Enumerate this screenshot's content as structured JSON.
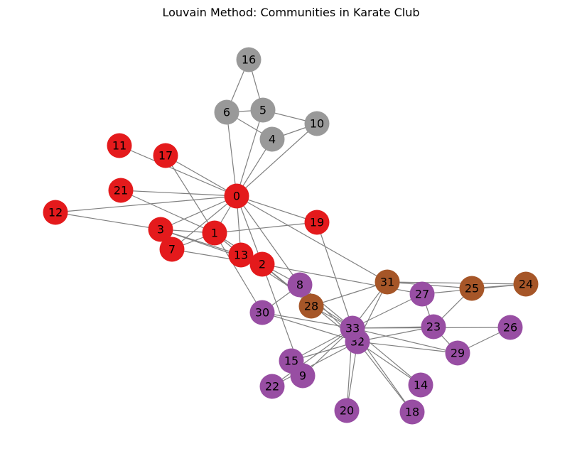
{
  "title": "Louvain Method: Communities in Karate Club",
  "colors": {
    "edge": "#808080",
    "community_red": "#e41a1c",
    "community_gray": "#999999",
    "community_brown": "#a65628",
    "community_purple": "#984ea3"
  },
  "graph": {
    "nodes": [
      {
        "id": "0",
        "community": "red"
      },
      {
        "id": "1",
        "community": "red"
      },
      {
        "id": "2",
        "community": "red"
      },
      {
        "id": "3",
        "community": "red"
      },
      {
        "id": "7",
        "community": "red"
      },
      {
        "id": "11",
        "community": "red"
      },
      {
        "id": "12",
        "community": "red"
      },
      {
        "id": "13",
        "community": "red"
      },
      {
        "id": "17",
        "community": "red"
      },
      {
        "id": "19",
        "community": "red"
      },
      {
        "id": "21",
        "community": "red"
      },
      {
        "id": "4",
        "community": "gray"
      },
      {
        "id": "5",
        "community": "gray"
      },
      {
        "id": "6",
        "community": "gray"
      },
      {
        "id": "10",
        "community": "gray"
      },
      {
        "id": "16",
        "community": "gray"
      },
      {
        "id": "24",
        "community": "brown"
      },
      {
        "id": "25",
        "community": "brown"
      },
      {
        "id": "28",
        "community": "brown"
      },
      {
        "id": "31",
        "community": "brown"
      },
      {
        "id": "8",
        "community": "purple"
      },
      {
        "id": "9",
        "community": "purple"
      },
      {
        "id": "14",
        "community": "purple"
      },
      {
        "id": "15",
        "community": "purple"
      },
      {
        "id": "18",
        "community": "purple"
      },
      {
        "id": "20",
        "community": "purple"
      },
      {
        "id": "22",
        "community": "purple"
      },
      {
        "id": "23",
        "community": "purple"
      },
      {
        "id": "26",
        "community": "purple"
      },
      {
        "id": "27",
        "community": "purple"
      },
      {
        "id": "29",
        "community": "purple"
      },
      {
        "id": "30",
        "community": "purple"
      },
      {
        "id": "32",
        "community": "purple"
      },
      {
        "id": "33",
        "community": "purple"
      }
    ],
    "edges": [
      [
        "0",
        "1"
      ],
      [
        "0",
        "2"
      ],
      [
        "0",
        "3"
      ],
      [
        "0",
        "4"
      ],
      [
        "0",
        "5"
      ],
      [
        "0",
        "6"
      ],
      [
        "0",
        "7"
      ],
      [
        "0",
        "8"
      ],
      [
        "0",
        "10"
      ],
      [
        "0",
        "11"
      ],
      [
        "0",
        "12"
      ],
      [
        "0",
        "13"
      ],
      [
        "0",
        "17"
      ],
      [
        "0",
        "19"
      ],
      [
        "0",
        "21"
      ],
      [
        "0",
        "31"
      ],
      [
        "1",
        "2"
      ],
      [
        "1",
        "3"
      ],
      [
        "1",
        "7"
      ],
      [
        "1",
        "13"
      ],
      [
        "1",
        "17"
      ],
      [
        "1",
        "19"
      ],
      [
        "1",
        "21"
      ],
      [
        "1",
        "30"
      ],
      [
        "2",
        "3"
      ],
      [
        "2",
        "7"
      ],
      [
        "2",
        "8"
      ],
      [
        "2",
        "9"
      ],
      [
        "2",
        "13"
      ],
      [
        "2",
        "27"
      ],
      [
        "2",
        "28"
      ],
      [
        "2",
        "32"
      ],
      [
        "3",
        "7"
      ],
      [
        "3",
        "12"
      ],
      [
        "3",
        "13"
      ],
      [
        "4",
        "6"
      ],
      [
        "4",
        "10"
      ],
      [
        "5",
        "6"
      ],
      [
        "5",
        "10"
      ],
      [
        "5",
        "16"
      ],
      [
        "6",
        "16"
      ],
      [
        "8",
        "30"
      ],
      [
        "8",
        "32"
      ],
      [
        "8",
        "33"
      ],
      [
        "9",
        "33"
      ],
      [
        "13",
        "33"
      ],
      [
        "14",
        "32"
      ],
      [
        "14",
        "33"
      ],
      [
        "15",
        "32"
      ],
      [
        "15",
        "33"
      ],
      [
        "18",
        "32"
      ],
      [
        "18",
        "33"
      ],
      [
        "19",
        "33"
      ],
      [
        "20",
        "32"
      ],
      [
        "20",
        "33"
      ],
      [
        "22",
        "32"
      ],
      [
        "22",
        "33"
      ],
      [
        "23",
        "25"
      ],
      [
        "23",
        "27"
      ],
      [
        "23",
        "29"
      ],
      [
        "23",
        "32"
      ],
      [
        "23",
        "33"
      ],
      [
        "24",
        "25"
      ],
      [
        "24",
        "27"
      ],
      [
        "24",
        "31"
      ],
      [
        "25",
        "31"
      ],
      [
        "26",
        "29"
      ],
      [
        "26",
        "33"
      ],
      [
        "27",
        "33"
      ],
      [
        "28",
        "31"
      ],
      [
        "28",
        "33"
      ],
      [
        "29",
        "32"
      ],
      [
        "29",
        "33"
      ],
      [
        "30",
        "32"
      ],
      [
        "30",
        "33"
      ],
      [
        "31",
        "32"
      ],
      [
        "31",
        "33"
      ],
      [
        "32",
        "33"
      ]
    ]
  }
}
